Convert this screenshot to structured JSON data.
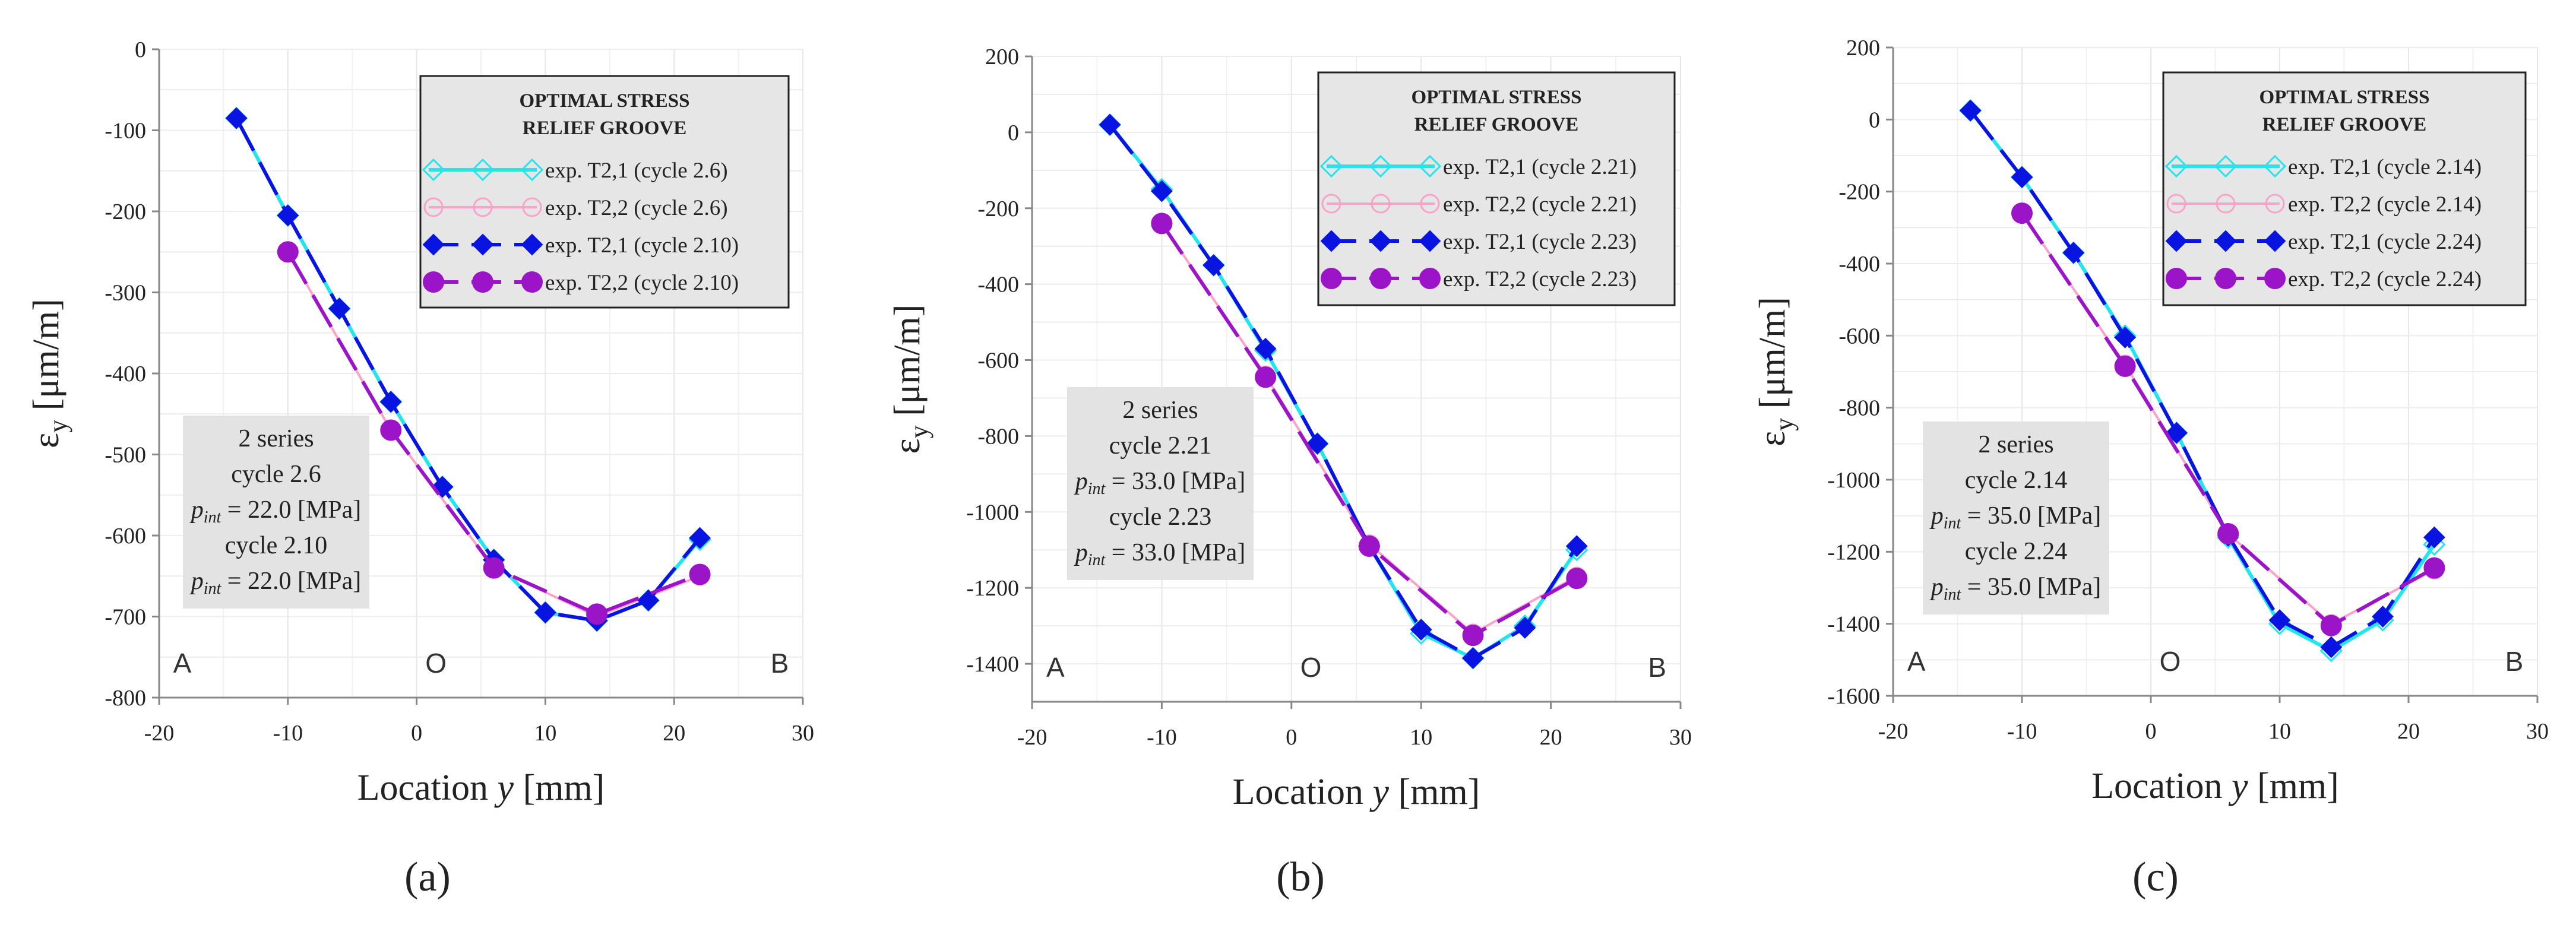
{
  "chart_data": [
    {
      "type": "line",
      "panel_label": "(a)",
      "xlabel": "Location y [mm]",
      "xlabel_prefix": "Location ",
      "xlabel_var": "y",
      "xlabel_suffix": " [mm]",
      "ylabel": "εy [μm/m]",
      "ylabel_main": "ε",
      "ylabel_sub": "y",
      "ylabel_units": " [μm/m]",
      "xlim": [
        -20,
        30
      ],
      "ylim": [
        -800,
        0
      ],
      "xticks": [
        -20,
        -10,
        0,
        10,
        20,
        30
      ],
      "yticks": [
        0,
        -100,
        -200,
        -300,
        -400,
        -500,
        -600,
        -700,
        -800
      ],
      "grid": true,
      "legend_title": [
        "OPTIMAL STRESS",
        "RELIEF GROOVE"
      ],
      "legend_position": "top-right",
      "series": [
        {
          "name": "exp. T2,1 (cycle 2.6)",
          "color": "#22e5ee",
          "marker": "diamond-open",
          "dash": "solid",
          "x": [
            -14,
            -10,
            -6,
            -2,
            2,
            6,
            10,
            14,
            18,
            22
          ],
          "y": [
            -85,
            -205,
            -320,
            -435,
            -540,
            -630,
            -695,
            -705,
            -680,
            -605
          ]
        },
        {
          "name": "exp. T2,2 (cycle 2.6)",
          "color": "#f9a3c9",
          "marker": "circle-open",
          "dash": "solid",
          "x": [
            -10,
            -2,
            6,
            14,
            22
          ],
          "y": [
            -250,
            -470,
            -640,
            -700,
            -650
          ]
        },
        {
          "name": "exp. T2,1 (cycle 2.10)",
          "color": "#0a14e0",
          "marker": "diamond",
          "dash": "dashed",
          "x": [
            -14,
            -10,
            -6,
            -2,
            2,
            6,
            10,
            14,
            18,
            22
          ],
          "y": [
            -85,
            -205,
            -320,
            -435,
            -540,
            -630,
            -695,
            -705,
            -680,
            -603
          ]
        },
        {
          "name": "exp. T2,2 (cycle 2.10)",
          "color": "#9b14c8",
          "marker": "circle",
          "dash": "dashed",
          "x": [
            -10,
            -2,
            6,
            14,
            22
          ],
          "y": [
            -250,
            -470,
            -640,
            -697,
            -648
          ]
        }
      ],
      "info_box": {
        "series_label": "2 series",
        "cycle_a": "cycle 2.6",
        "pint_a": "= 22.0 [MPa]",
        "cycle_b": "cycle 2.10",
        "pint_b": "= 22.0 [MPa]",
        "p_symbol": "p",
        "p_subscript": "int"
      },
      "position_labels": {
        "A": "A",
        "O": "O",
        "B": "B"
      }
    },
    {
      "type": "line",
      "panel_label": "(b)",
      "xlabel": "Location y [mm]",
      "xlabel_prefix": "Location ",
      "xlabel_var": "y",
      "xlabel_suffix": " [mm]",
      "ylabel": "εy [μm/m]",
      "ylabel_main": "ε",
      "ylabel_sub": "y",
      "ylabel_units": " [μm/m]",
      "xlim": [
        -20,
        30
      ],
      "ylim": [
        -1500,
        200
      ],
      "xticks": [
        -20,
        -10,
        0,
        10,
        20,
        30
      ],
      "yticks": [
        200,
        0,
        -200,
        -400,
        -600,
        -800,
        -1000,
        -1200,
        -1400
      ],
      "grid": true,
      "legend_title": [
        "OPTIMAL STRESS",
        "RELIEF GROOVE"
      ],
      "legend_position": "top-right",
      "series": [
        {
          "name": "exp. T2,1 (cycle 2.21)",
          "color": "#22e5ee",
          "marker": "diamond-open",
          "dash": "solid",
          "x": [
            -14,
            -10,
            -6,
            -2,
            2,
            6,
            10,
            14,
            18,
            22
          ],
          "y": [
            20,
            -150,
            -350,
            -575,
            -820,
            -1090,
            -1320,
            -1385,
            -1300,
            -1100
          ]
        },
        {
          "name": "exp. T2,2 (cycle 2.21)",
          "color": "#f9a3c9",
          "marker": "circle-open",
          "dash": "solid",
          "x": [
            -10,
            -2,
            6,
            14,
            22
          ],
          "y": [
            -240,
            -640,
            -1085,
            -1320,
            -1170
          ]
        },
        {
          "name": "exp. T2,1 (cycle 2.23)",
          "color": "#0a14e0",
          "marker": "diamond",
          "dash": "dashed",
          "x": [
            -14,
            -10,
            -6,
            -2,
            2,
            6,
            10,
            14,
            18,
            22
          ],
          "y": [
            20,
            -155,
            -350,
            -570,
            -820,
            -1090,
            -1310,
            -1385,
            -1305,
            -1090
          ]
        },
        {
          "name": "exp. T2,2 (cycle 2.23)",
          "color": "#9b14c8",
          "marker": "circle",
          "dash": "dashed",
          "x": [
            -10,
            -2,
            6,
            14,
            22
          ],
          "y": [
            -240,
            -645,
            -1090,
            -1325,
            -1175
          ]
        }
      ],
      "info_box": {
        "series_label": "2 series",
        "cycle_a": "cycle 2.21",
        "pint_a": "= 33.0 [MPa]",
        "cycle_b": "cycle 2.23",
        "pint_b": "= 33.0 [MPa]",
        "p_symbol": "p",
        "p_subscript": "int"
      },
      "position_labels": {
        "A": "A",
        "O": "O",
        "B": "B"
      }
    },
    {
      "type": "line",
      "panel_label": "(c)",
      "xlabel": "Location y [mm]",
      "xlabel_prefix": "Location ",
      "xlabel_var": "y",
      "xlabel_suffix": " [mm]",
      "ylabel": "εy [μm/m]",
      "ylabel_main": "ε",
      "ylabel_sub": "y",
      "ylabel_units": " [μm/m]",
      "xlim": [
        -20,
        30
      ],
      "ylim": [
        -1600,
        200
      ],
      "xticks": [
        -20,
        -10,
        0,
        10,
        20,
        30
      ],
      "yticks": [
        200,
        0,
        -200,
        -400,
        -600,
        -800,
        -1000,
        -1200,
        -1400,
        -1600
      ],
      "grid": true,
      "legend_title": [
        "OPTIMAL STRESS",
        "RELIEF GROOVE"
      ],
      "legend_position": "top-right",
      "series": [
        {
          "name": "exp. T2,1 (cycle 2.14)",
          "color": "#22e5ee",
          "marker": "diamond-open",
          "dash": "solid",
          "x": [
            -14,
            -10,
            -6,
            -2,
            2,
            6,
            10,
            14,
            18,
            22
          ],
          "y": [
            25,
            -160,
            -370,
            -600,
            -870,
            -1160,
            -1400,
            -1475,
            -1390,
            -1180
          ]
        },
        {
          "name": "exp. T2,2 (cycle 2.14)",
          "color": "#f9a3c9",
          "marker": "circle-open",
          "dash": "solid",
          "x": [
            -10,
            -2,
            6,
            14,
            22
          ],
          "y": [
            -260,
            -680,
            -1150,
            -1400,
            -1250
          ]
        },
        {
          "name": "exp. T2,1 (cycle 2.24)",
          "color": "#0a14e0",
          "marker": "diamond",
          "dash": "dashed",
          "x": [
            -14,
            -10,
            -6,
            -2,
            2,
            6,
            10,
            14,
            18,
            22
          ],
          "y": [
            25,
            -160,
            -370,
            -605,
            -870,
            -1155,
            -1390,
            -1465,
            -1380,
            -1160
          ]
        },
        {
          "name": "exp. T2,2 (cycle 2.24)",
          "color": "#9b14c8",
          "marker": "circle",
          "dash": "dashed",
          "x": [
            -10,
            -2,
            6,
            14,
            22
          ],
          "y": [
            -260,
            -685,
            -1150,
            -1405,
            -1245
          ]
        }
      ],
      "info_box": {
        "series_label": "2 series",
        "cycle_a": "cycle 2.14",
        "pint_a": "= 35.0 [MPa]",
        "cycle_b": "cycle 2.24",
        "pint_b": "= 35.0 [MPa]",
        "p_symbol": "p",
        "p_subscript": "int"
      },
      "position_labels": {
        "A": "A",
        "O": "O",
        "B": "B"
      }
    }
  ]
}
